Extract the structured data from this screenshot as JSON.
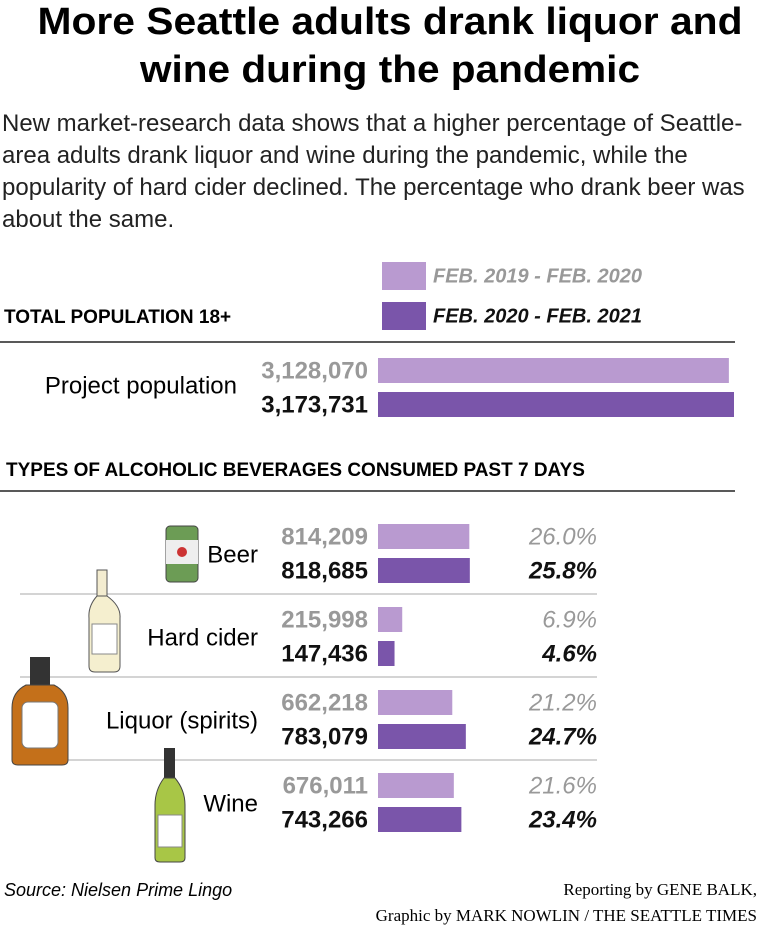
{
  "headline": "More Seattle adults drank liquor and wine during the pandemic",
  "description": "New market-research data shows that a higher percentage of Seattle-area adults drank liquor and wine during the pandemic, while the popularity of hard cider declined. The percentage who drank beer was about the same.",
  "chart_data": [
    {
      "type": "bar",
      "title": "TOTAL POPULATION 18+",
      "categories": [
        "Project population"
      ],
      "series": [
        {
          "name": "FEB. 2019 - FEB. 2020",
          "color": "#b99ad0",
          "values": [
            3128070
          ],
          "value_labels": [
            "3,128,070"
          ]
        },
        {
          "name": "FEB. 2020 - FEB. 2021",
          "color": "#7a55aa",
          "values": [
            3173731
          ],
          "value_labels": [
            "3,173,731"
          ]
        }
      ]
    },
    {
      "type": "bar",
      "title": "TYPES OF ALCOHOLIC BEVERAGES CONSUMED PAST 7 DAYS",
      "categories": [
        "Beer",
        "Hard cider",
        "Liquor (spirits)",
        "Wine"
      ],
      "series": [
        {
          "color": "#b99ad0",
          "values": [
            814209,
            215998,
            662218,
            676011
          ],
          "value_labels": [
            "814,209",
            "215,998",
            "662,218",
            "676,011"
          ],
          "percents": [
            26.0,
            6.9,
            21.2,
            21.6
          ],
          "percent_labels": [
            "26.0%",
            "6.9%",
            "21.2%",
            "21.6%"
          ]
        },
        {
          "color": "#7a55aa",
          "values": [
            818685,
            147436,
            783079,
            743266
          ],
          "value_labels": [
            "818,685",
            "147,436",
            "783,079",
            "743,266"
          ],
          "percents": [
            25.8,
            4.6,
            24.7,
            23.4
          ],
          "percent_labels": [
            "25.8%",
            "4.6%",
            "24.7%",
            "23.4%"
          ]
        }
      ]
    }
  ],
  "source": "Source: Nielsen Prime Lingo",
  "credit": [
    "Reporting by GENE BALK,",
    "Graphic by MARK NOWLIN / THE SEATTLE TIMES"
  ]
}
